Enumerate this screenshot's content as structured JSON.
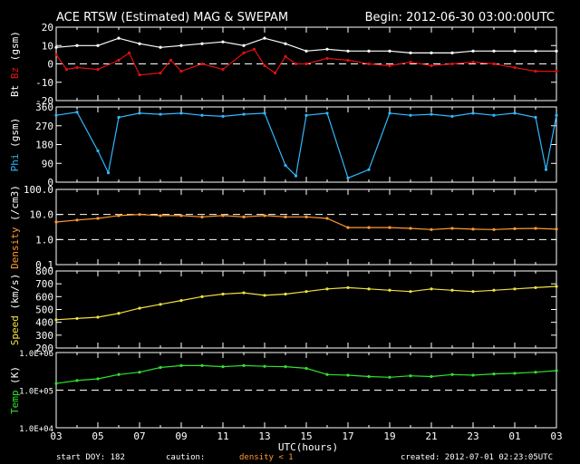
{
  "header": {
    "title": "ACE RTSW (Estimated) MAG & SWEPAM",
    "begin": "Begin: 2012-06-30 03:00:00UTC"
  },
  "footer": {
    "start_doy": "start DOY: 182",
    "caution_label": "caution:",
    "caution_note": "density < 1",
    "created": "created: 2012-07-01 02:23:05UTC"
  },
  "colors": {
    "background": "#000000",
    "bt": "#ffffff",
    "bz": "#e01010",
    "phi": "#30b8ff",
    "density": "#ff9a30",
    "speed": "#f0e040",
    "temp": "#30e030"
  },
  "chart_data": {
    "type": "scatter",
    "xlabel": "UTC(hours)",
    "x_ticks": [
      "03",
      "05",
      "07",
      "09",
      "11",
      "13",
      "15",
      "17",
      "19",
      "21",
      "23",
      "01",
      "03"
    ],
    "x_range_hours": [
      0,
      24
    ],
    "panels": [
      {
        "id": "mag",
        "ylabel_parts": [
          {
            "text": "Bt",
            "color": "#ffffff"
          },
          {
            "text": "Bz",
            "color": "#e01010"
          },
          {
            "text": "(gsm)",
            "color": "#ffffff"
          }
        ],
        "ylim": [
          -20,
          20
        ],
        "scale": "linear",
        "yticks": [
          "20",
          "10",
          "0",
          "-10",
          "-20"
        ],
        "ytick_values": [
          20,
          10,
          0,
          -10,
          -20
        ],
        "dashed_lines": [
          0
        ],
        "series": [
          {
            "name": "Bt",
            "color": "#ffffff",
            "points": [
              [
                0,
                9
              ],
              [
                1,
                10
              ],
              [
                2,
                10
              ],
              [
                3,
                14
              ],
              [
                4,
                11
              ],
              [
                5,
                9
              ],
              [
                6,
                10
              ],
              [
                7,
                11
              ],
              [
                8,
                12
              ],
              [
                9,
                10
              ],
              [
                10,
                14
              ],
              [
                11,
                11
              ],
              [
                12,
                7
              ],
              [
                13,
                8
              ],
              [
                14,
                7
              ],
              [
                15,
                7
              ],
              [
                16,
                7
              ],
              [
                17,
                6
              ],
              [
                18,
                6
              ],
              [
                19,
                6
              ],
              [
                20,
                7
              ],
              [
                21,
                7
              ],
              [
                22,
                7
              ],
              [
                23,
                7
              ],
              [
                24,
                7
              ]
            ]
          },
          {
            "name": "Bz",
            "color": "#e01010",
            "points": [
              [
                0,
                5
              ],
              [
                0.5,
                -3
              ],
              [
                1,
                -2
              ],
              [
                2,
                -3
              ],
              [
                3,
                2
              ],
              [
                3.5,
                6
              ],
              [
                4,
                -6
              ],
              [
                5,
                -5
              ],
              [
                5.5,
                2
              ],
              [
                6,
                -4
              ],
              [
                7,
                0
              ],
              [
                8,
                -3
              ],
              [
                9,
                6
              ],
              [
                9.5,
                8
              ],
              [
                10,
                -1
              ],
              [
                10.5,
                -5
              ],
              [
                11,
                4
              ],
              [
                11.5,
                0
              ],
              [
                12,
                0
              ],
              [
                13,
                3
              ],
              [
                14,
                2
              ],
              [
                15,
                0
              ],
              [
                16,
                -1
              ],
              [
                17,
                1
              ],
              [
                18,
                -1
              ],
              [
                19,
                0
              ],
              [
                20,
                1
              ],
              [
                21,
                0
              ],
              [
                22,
                -2
              ],
              [
                23,
                -4
              ],
              [
                24,
                -4
              ]
            ]
          }
        ]
      },
      {
        "id": "phi",
        "ylabel_parts": [
          {
            "text": "Phi",
            "color": "#30b8ff"
          },
          {
            "text": "(gsm)",
            "color": "#ffffff"
          }
        ],
        "ylim": [
          0,
          360
        ],
        "scale": "linear",
        "yticks": [
          "360",
          "270",
          "180",
          "90",
          "0"
        ],
        "ytick_values": [
          360,
          270,
          180,
          90,
          0
        ],
        "dashed_lines": [],
        "series": [
          {
            "name": "Phi",
            "color": "#30b8ff",
            "points": [
              [
                0,
                320
              ],
              [
                1,
                335
              ],
              [
                2,
                150
              ],
              [
                2.5,
                45
              ],
              [
                3,
                310
              ],
              [
                4,
                330
              ],
              [
                5,
                325
              ],
              [
                6,
                330
              ],
              [
                7,
                320
              ],
              [
                8,
                315
              ],
              [
                9,
                325
              ],
              [
                10,
                330
              ],
              [
                11,
                80
              ],
              [
                11.5,
                30
              ],
              [
                12,
                320
              ],
              [
                13,
                330
              ],
              [
                14,
                20
              ],
              [
                15,
                60
              ],
              [
                16,
                330
              ],
              [
                17,
                320
              ],
              [
                18,
                325
              ],
              [
                19,
                315
              ],
              [
                20,
                330
              ],
              [
                21,
                320
              ],
              [
                22,
                330
              ],
              [
                23,
                310
              ],
              [
                23.5,
                60
              ],
              [
                24,
                320
              ]
            ]
          }
        ]
      },
      {
        "id": "density",
        "ylabel_parts": [
          {
            "text": "Density",
            "color": "#ff9a30"
          },
          {
            "text": "(/cm3)",
            "color": "#ffffff"
          }
        ],
        "ylim": [
          0.1,
          100
        ],
        "scale": "log",
        "yticks": [
          "100.0",
          "10.0",
          "1.0",
          "0.1"
        ],
        "ytick_values": [
          100,
          10,
          1,
          0.1
        ],
        "dashed_lines": [
          10,
          1
        ],
        "series": [
          {
            "name": "Density",
            "color": "#ff9a30",
            "points": [
              [
                0,
                5
              ],
              [
                1,
                6
              ],
              [
                2,
                7
              ],
              [
                3,
                9
              ],
              [
                4,
                10
              ],
              [
                5,
                9
              ],
              [
                6,
                9
              ],
              [
                7,
                8
              ],
              [
                8,
                9
              ],
              [
                9,
                8
              ],
              [
                10,
                9
              ],
              [
                11,
                8
              ],
              [
                12,
                8
              ],
              [
                13,
                7
              ],
              [
                14,
                3
              ],
              [
                15,
                3
              ],
              [
                16,
                3
              ],
              [
                17,
                2.8
              ],
              [
                18,
                2.5
              ],
              [
                19,
                2.8
              ],
              [
                20,
                2.6
              ],
              [
                21,
                2.5
              ],
              [
                22,
                2.7
              ],
              [
                23,
                2.8
              ],
              [
                24,
                2.6
              ]
            ]
          }
        ]
      },
      {
        "id": "speed",
        "ylabel_parts": [
          {
            "text": "Speed",
            "color": "#f0e040"
          },
          {
            "text": "(km/s)",
            "color": "#ffffff"
          }
        ],
        "ylim": [
          200,
          800
        ],
        "scale": "linear",
        "yticks": [
          "800",
          "700",
          "600",
          "500",
          "400",
          "300",
          "200"
        ],
        "ytick_values": [
          800,
          700,
          600,
          500,
          400,
          300,
          200
        ],
        "dashed_lines": [],
        "series": [
          {
            "name": "Speed",
            "color": "#f0e040",
            "points": [
              [
                0,
                420
              ],
              [
                1,
                430
              ],
              [
                2,
                440
              ],
              [
                3,
                470
              ],
              [
                4,
                510
              ],
              [
                5,
                540
              ],
              [
                6,
                570
              ],
              [
                7,
                600
              ],
              [
                8,
                620
              ],
              [
                9,
                630
              ],
              [
                10,
                610
              ],
              [
                11,
                620
              ],
              [
                12,
                640
              ],
              [
                13,
                660
              ],
              [
                14,
                670
              ],
              [
                15,
                660
              ],
              [
                16,
                650
              ],
              [
                17,
                640
              ],
              [
                18,
                660
              ],
              [
                19,
                650
              ],
              [
                20,
                640
              ],
              [
                21,
                650
              ],
              [
                22,
                660
              ],
              [
                23,
                670
              ],
              [
                24,
                680
              ]
            ]
          }
        ]
      },
      {
        "id": "temp",
        "ylabel_parts": [
          {
            "text": "Temp",
            "color": "#30e030"
          },
          {
            "text": "(K)",
            "color": "#ffffff"
          }
        ],
        "ylim": [
          10000,
          1000000
        ],
        "scale": "log",
        "yticks": [
          "1.0E+06",
          "1.0E+05",
          "1.0E+04"
        ],
        "ytick_values": [
          1000000,
          100000,
          10000
        ],
        "dashed_lines": [
          100000
        ],
        "series": [
          {
            "name": "Temp",
            "color": "#30e030",
            "points": [
              [
                0,
                150000
              ],
              [
                1,
                180000
              ],
              [
                2,
                200000
              ],
              [
                3,
                260000
              ],
              [
                4,
                300000
              ],
              [
                5,
                400000
              ],
              [
                6,
                450000
              ],
              [
                7,
                450000
              ],
              [
                8,
                420000
              ],
              [
                9,
                450000
              ],
              [
                10,
                430000
              ],
              [
                11,
                420000
              ],
              [
                12,
                380000
              ],
              [
                13,
                260000
              ],
              [
                14,
                250000
              ],
              [
                15,
                230000
              ],
              [
                16,
                220000
              ],
              [
                17,
                240000
              ],
              [
                18,
                230000
              ],
              [
                19,
                260000
              ],
              [
                20,
                250000
              ],
              [
                21,
                270000
              ],
              [
                22,
                280000
              ],
              [
                23,
                300000
              ],
              [
                24,
                330000
              ]
            ]
          }
        ]
      }
    ]
  }
}
